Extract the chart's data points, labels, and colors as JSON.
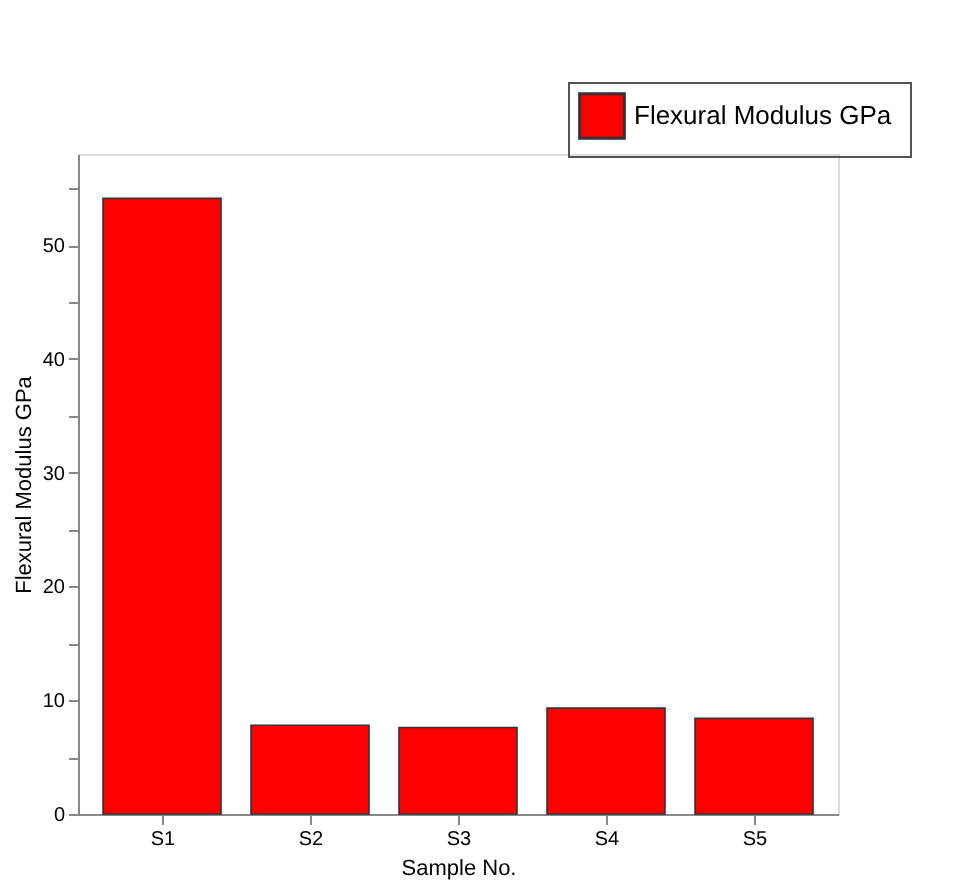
{
  "chart_data": {
    "type": "bar",
    "xlabel": "Sample No.",
    "ylabel": "Flexural  Modulus GPa",
    "categories": [
      "S1",
      "S2",
      "S3",
      "S4",
      "S5"
    ],
    "series": [
      {
        "name": "Flexural  Modulus GPa",
        "color": "#ff0000",
        "values": [
          54.1,
          7.8,
          7.6,
          9.3,
          8.4
        ]
      }
    ],
    "ylim": [
      0,
      58
    ],
    "yticks": [
      0,
      {
        "value": 5,
        "label": null
      },
      10,
      {
        "value": 15,
        "label": null
      },
      20,
      {
        "value": 25,
        "label": null
      },
      30,
      {
        "value": 35,
        "label": null
      },
      40,
      {
        "value": 45,
        "label": null
      },
      50,
      {
        "value": 55,
        "label": null
      }
    ],
    "legend": "top right",
    "grid": false
  }
}
